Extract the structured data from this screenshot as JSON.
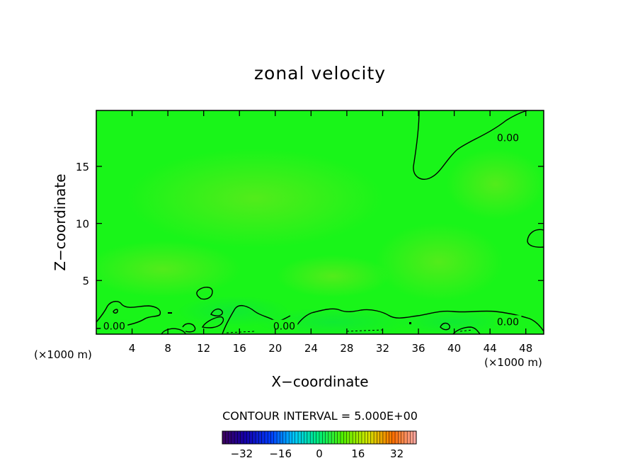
{
  "chart_data": {
    "type": "contour",
    "title": "zonal velocity",
    "xlabel": "X−coordinate",
    "ylabel": "Z−coordinate",
    "x_unit_left": "(×1000 m)",
    "x_unit_right": "(×1000 m)",
    "xlim": [
      0,
      50
    ],
    "ylim": [
      0.3,
      19.9
    ],
    "x_ticks": [
      4,
      8,
      12,
      16,
      20,
      24,
      28,
      32,
      36,
      40,
      44,
      48
    ],
    "x_tick_labels": [
      "4",
      "8",
      "12",
      "16",
      "20",
      "24",
      "28",
      "32",
      "36",
      "40",
      "44",
      "48"
    ],
    "y_ticks": [
      5,
      10,
      15
    ],
    "y_tick_labels": [
      "5",
      "10",
      "15"
    ],
    "contour_labels": [
      {
        "text": "0.00",
        "x": 46.0,
        "y": 17.5
      },
      {
        "text": "0.00",
        "x": 2.0,
        "y": 1.0
      },
      {
        "text": "0.00",
        "x": 21.0,
        "y": 1.0
      },
      {
        "text": "0.00",
        "x": 46.0,
        "y": 1.4
      }
    ],
    "contour_interval_text": "CONTOUR INTERVAL = 5.000E+00",
    "colorbar": {
      "min": -40,
      "max": 40,
      "tick_values": [
        -32,
        -16,
        0,
        16,
        32
      ],
      "tick_labels": [
        "−32",
        "−16",
        "0",
        "16",
        "32"
      ]
    },
    "colors": {
      "field_base": "#19f519",
      "field_light": "#5ae619",
      "field_dark": "#10ea30",
      "contour_line": "#000000"
    }
  }
}
